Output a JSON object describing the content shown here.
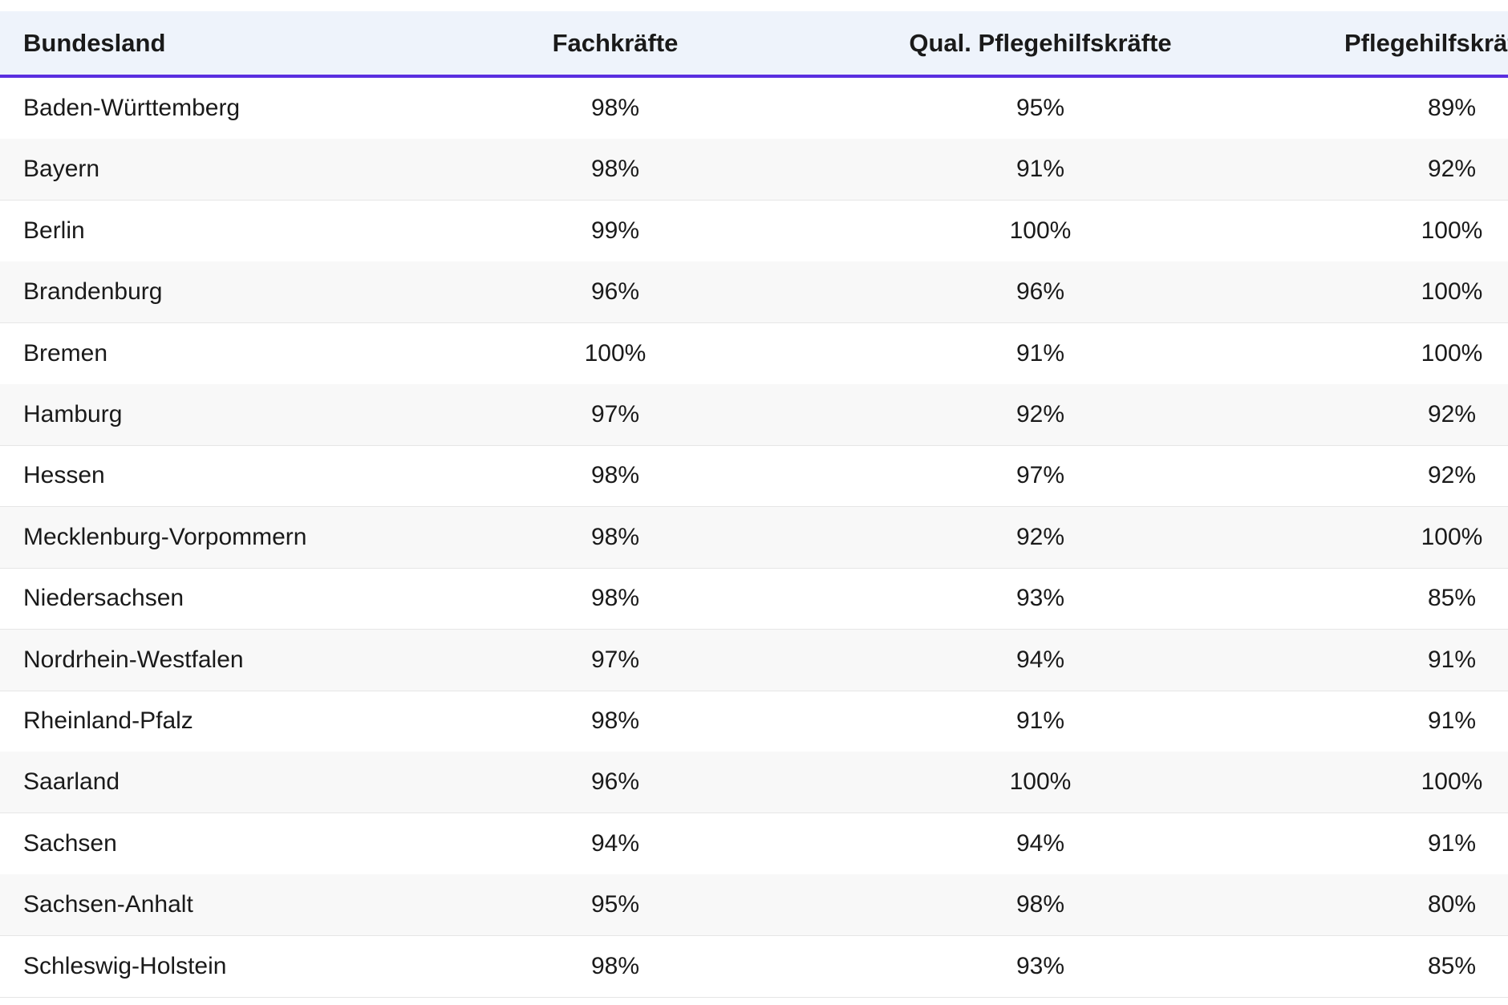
{
  "header": {
    "columns": [
      "Bundesland",
      "Fachkräfte",
      "Qual. Pflegehilfskräfte",
      "Pflegehilfskräfte"
    ]
  },
  "table": {
    "rows": [
      [
        "Baden-Württemberg",
        "98%",
        "95%",
        "89%"
      ],
      [
        "Bayern",
        "98%",
        "91%",
        "92%"
      ],
      [
        "Berlin",
        "99%",
        "100%",
        "100%"
      ],
      [
        "Brandenburg",
        "96%",
        "96%",
        "100%"
      ],
      [
        "Bremen",
        "100%",
        "91%",
        "100%"
      ],
      [
        "Hamburg",
        "97%",
        "92%",
        "92%"
      ],
      [
        "Hessen",
        "98%",
        "97%",
        "92%"
      ],
      [
        "Mecklenburg-Vorpommern",
        "98%",
        "92%",
        "100%"
      ],
      [
        "Niedersachsen",
        "98%",
        "93%",
        "85%"
      ],
      [
        "Nordrhein-Westfalen",
        "97%",
        "94%",
        "91%"
      ],
      [
        "Rheinland-Pfalz",
        "98%",
        "91%",
        "91%"
      ],
      [
        "Saarland",
        "96%",
        "100%",
        "100%"
      ],
      [
        "Sachsen",
        "94%",
        "94%",
        "91%"
      ],
      [
        "Sachsen-Anhalt",
        "95%",
        "98%",
        "80%"
      ],
      [
        "Schleswig-Holstein",
        "98%",
        "93%",
        "85%"
      ]
    ]
  }
}
